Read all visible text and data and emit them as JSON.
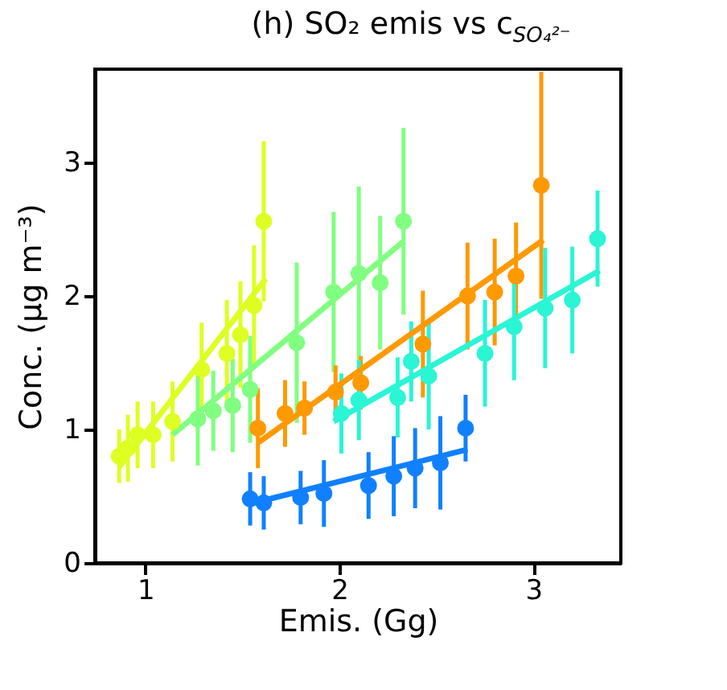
{
  "chart_data": {
    "type": "scatter",
    "title": "(h) SO₂ emis vs c$_{SO₄²⁻}$",
    "xlabel": "Emis. (Gg)",
    "ylabel": "Conc. (μg m⁻³)",
    "xlim": [
      0.74,
      3.45
    ],
    "xticks": [
      {
        "value": 1,
        "label": "1"
      },
      {
        "value": 2,
        "label": "2"
      },
      {
        "value": 3,
        "label": "3"
      }
    ],
    "ylim": [
      0,
      3.7
    ],
    "yticks": [
      {
        "value": 0,
        "label": "0"
      },
      {
        "value": 1,
        "label": "1"
      },
      {
        "value": 2,
        "label": "2"
      },
      {
        "value": 3,
        "label": "3"
      }
    ],
    "series": [
      {
        "color": "#ddff22",
        "marker": "circle",
        "x": [
          0.865,
          0.91,
          0.96,
          1.04,
          1.14,
          1.29,
          1.42,
          1.49,
          1.56,
          1.61
        ],
        "values": [
          0.8,
          0.86,
          0.96,
          0.96,
          1.06,
          1.45,
          1.57,
          1.71,
          1.93,
          2.56
        ],
        "errors": [
          0.2,
          0.25,
          0.25,
          0.25,
          0.3,
          0.35,
          0.4,
          0.4,
          0.45,
          0.6
        ]
      },
      {
        "type": "line",
        "color": "#ddff22",
        "x": [
          0.865,
          1.62
        ],
        "values": [
          0.72,
          2.13
        ]
      },
      {
        "color": "#80ff80",
        "marker": "circle",
        "x": [
          1.27,
          1.35,
          1.45,
          1.54,
          1.78,
          1.97,
          2.1,
          2.21,
          2.33
        ],
        "values": [
          1.08,
          1.14,
          1.18,
          1.3,
          1.65,
          2.03,
          2.17,
          2.1,
          2.56
        ],
        "errors": [
          0.35,
          0.3,
          0.35,
          0.4,
          0.6,
          0.6,
          0.65,
          0.5,
          0.7
        ]
      },
      {
        "type": "line",
        "color": "#80ff80",
        "x": [
          1.14,
          2.33
        ],
        "values": [
          0.96,
          2.41
        ]
      },
      {
        "color": "#ff9900",
        "marker": "circle",
        "x": [
          1.58,
          1.72,
          1.82,
          1.98,
          2.11,
          2.43,
          2.66,
          2.8,
          2.91,
          3.04
        ],
        "values": [
          1.01,
          1.12,
          1.16,
          1.28,
          1.35,
          1.64,
          2.0,
          2.03,
          2.15,
          2.83
        ],
        "errors": [
          0.3,
          0.25,
          0.2,
          0.2,
          0.2,
          0.4,
          0.4,
          0.4,
          0.4,
          0.85
        ]
      },
      {
        "type": "line",
        "color": "#ff9900",
        "x": [
          1.58,
          3.05
        ],
        "values": [
          0.9,
          2.42
        ]
      },
      {
        "color": "#2af5d5",
        "marker": "circle",
        "x": [
          2.01,
          2.1,
          2.3,
          2.37,
          2.46,
          2.75,
          2.9,
          3.06,
          3.2,
          3.33
        ],
        "values": [
          1.12,
          1.22,
          1.24,
          1.51,
          1.4,
          1.57,
          1.77,
          1.91,
          1.97,
          2.43
        ],
        "errors": [
          0.3,
          0.3,
          0.3,
          0.3,
          0.4,
          0.4,
          0.4,
          0.45,
          0.4,
          0.36
        ]
      },
      {
        "type": "line",
        "color": "#2af5d5",
        "x": [
          1.97,
          3.34
        ],
        "values": [
          1.06,
          2.19
        ]
      },
      {
        "color": "#1080ff",
        "marker": "circle",
        "x": [
          1.54,
          1.61,
          1.8,
          1.92,
          2.15,
          2.28,
          2.39,
          2.52,
          2.65
        ],
        "values": [
          0.48,
          0.45,
          0.49,
          0.52,
          0.58,
          0.65,
          0.71,
          0.75,
          1.01
        ],
        "errors": [
          0.2,
          0.2,
          0.2,
          0.25,
          0.25,
          0.3,
          0.3,
          0.35,
          0.25
        ]
      },
      {
        "type": "line",
        "color": "#1080ff",
        "x": [
          1.53,
          2.66
        ],
        "values": [
          0.44,
          0.85
        ]
      }
    ]
  }
}
